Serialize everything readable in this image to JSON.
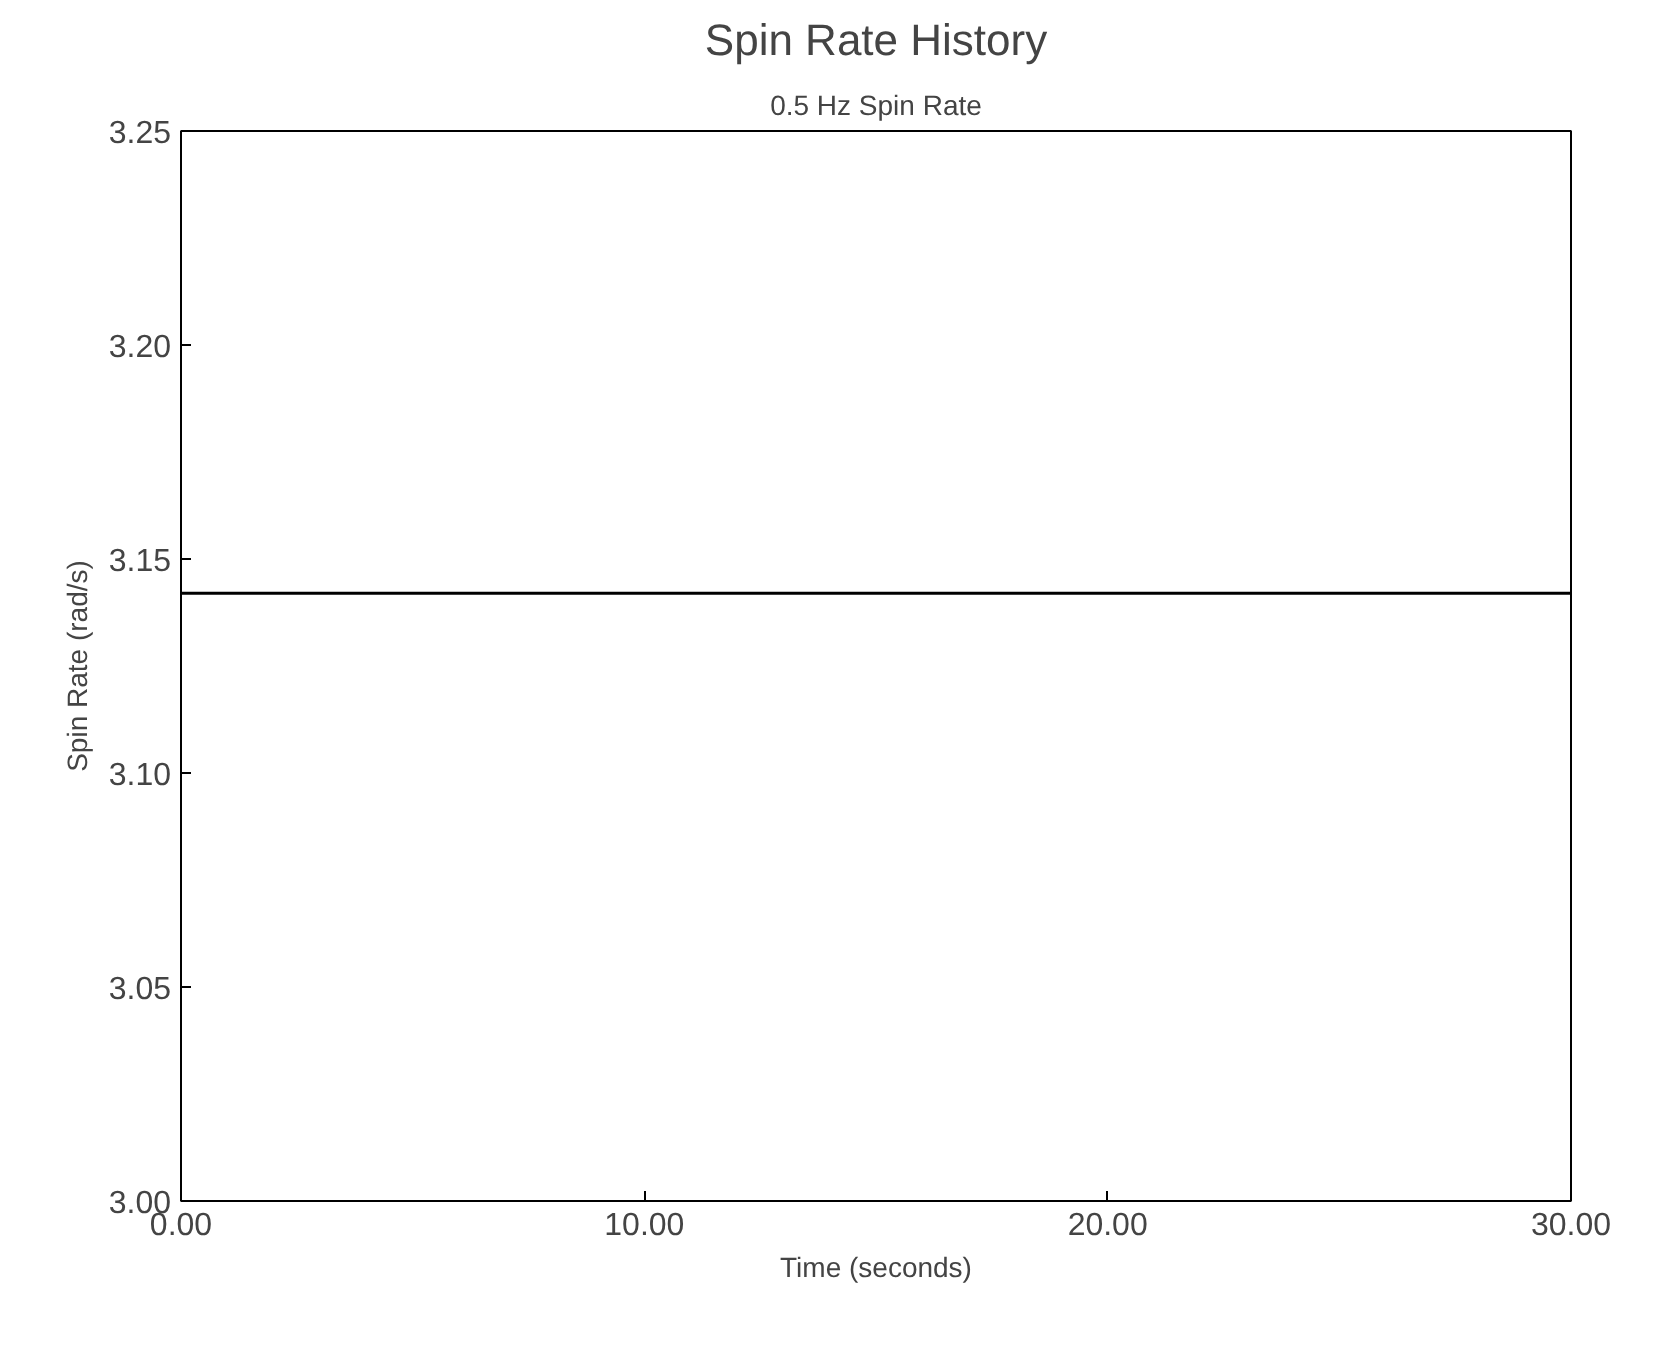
{
  "chart_data": {
    "type": "line",
    "title": "Spin Rate History",
    "subtitle": "0.5 Hz Spin Rate",
    "xlabel": "Time (seconds)",
    "ylabel": "Spin Rate (rad/s)",
    "x": [
      0,
      30
    ],
    "series": [
      {
        "color": "#000000",
        "values": [
          3.142,
          3.142
        ]
      }
    ],
    "xlim": [
      0,
      30
    ],
    "ylim": [
      3.0,
      3.25
    ],
    "xticks": [
      {
        "value": 0,
        "label": "0.00"
      },
      {
        "value": 10,
        "label": "10.00"
      },
      {
        "value": 20,
        "label": "20.00"
      },
      {
        "value": 30,
        "label": "30.00"
      }
    ],
    "yticks": [
      {
        "value": 3.0,
        "label": "3.00"
      },
      {
        "value": 3.05,
        "label": "3.05"
      },
      {
        "value": 3.1,
        "label": "3.10"
      },
      {
        "value": 3.15,
        "label": "3.15"
      },
      {
        "value": 3.2,
        "label": "3.20"
      },
      {
        "value": 3.25,
        "label": "3.25"
      }
    ],
    "grid": false,
    "line_style": "solid"
  }
}
